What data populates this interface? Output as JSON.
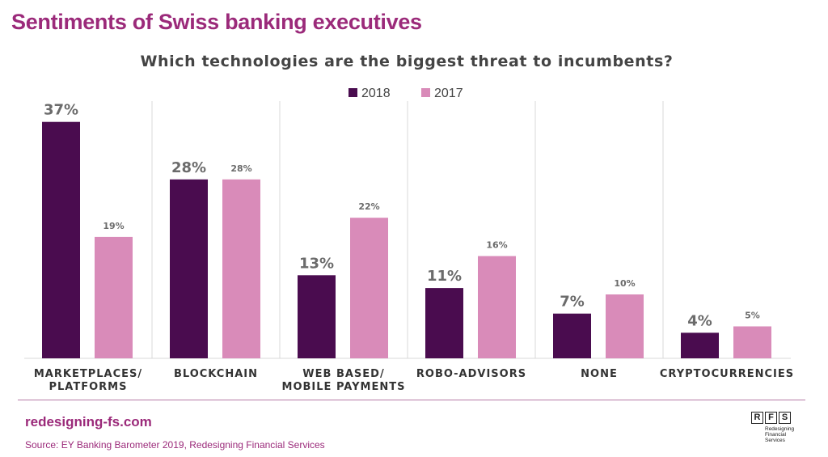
{
  "page": {
    "title": "Sentiments of Swiss banking executives",
    "site": "redesigning-fs.com",
    "source": "Source: EY Banking Barometer 2019, Redesigning Financial Services",
    "logo": {
      "letters": [
        "R",
        "F",
        "S"
      ],
      "text_lines": [
        "Redesigning",
        "Financial",
        "Services"
      ]
    }
  },
  "chart_data": {
    "type": "bar",
    "title": "Which technologies are the biggest threat to incumbents?",
    "categories": [
      [
        "MARKETPLACES/",
        "PLATFORMS"
      ],
      [
        "BLOCKCHAIN"
      ],
      [
        "WEB BASED/",
        "MOBILE PAYMENTS"
      ],
      [
        "ROBO-ADVISORS"
      ],
      [
        "NONE"
      ],
      [
        "CRYPTOCURRENCIES"
      ]
    ],
    "series": [
      {
        "name": "2018",
        "values": [
          37,
          28,
          13,
          11,
          7,
          4
        ],
        "labels": [
          "37%",
          "28%",
          "13%",
          "11%",
          "7%",
          "4%"
        ]
      },
      {
        "name": "2017",
        "values": [
          19,
          28,
          22,
          16,
          10,
          5
        ],
        "labels": [
          "19%",
          "28%",
          "22%",
          "16%",
          "10%",
          "5%"
        ]
      }
    ],
    "ylim": [
      0,
      40
    ],
    "grid": false,
    "legend": "top-center",
    "colors": {
      "2018": "#4a0c4f",
      "2017": "#d98bb9",
      "title": "#9b2a7a",
      "axis_text": "#333333",
      "value_label": "#6b6b6b",
      "separator": "#d9d9d9"
    }
  }
}
